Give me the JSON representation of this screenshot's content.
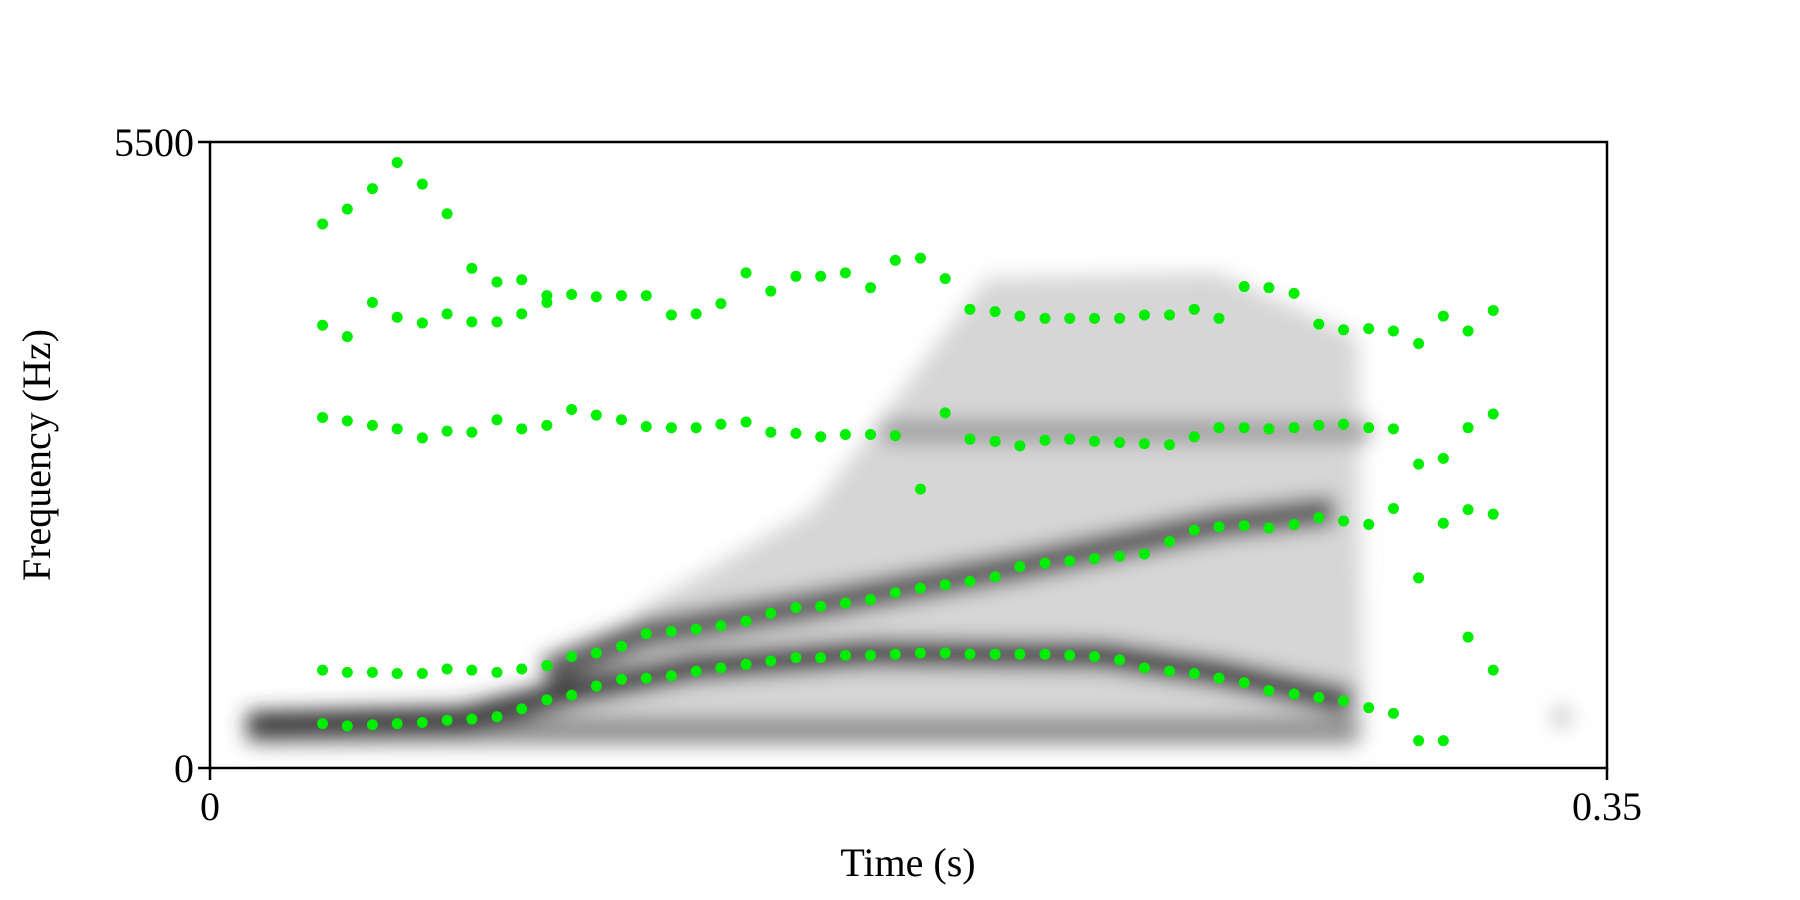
{
  "chart_data": {
    "type": "scatter",
    "xlabel": "Time (s)",
    "ylabel": "Frequency (Hz)",
    "xlim": [
      0,
      0.35
    ],
    "xticks": [
      0,
      0.35
    ],
    "ylim": [
      0,
      5500
    ],
    "yticks": [
      0,
      5500
    ],
    "x": [
      0.0282,
      0.0344,
      0.0407,
      0.0469,
      0.0532,
      0.0594,
      0.0656,
      0.0719,
      0.0781,
      0.0844,
      0.0906,
      0.0968,
      0.1031,
      0.1093,
      0.1156,
      0.1218,
      0.128,
      0.1343,
      0.1405,
      0.1468,
      0.153,
      0.1592,
      0.1655,
      0.1717,
      0.178,
      0.1842,
      0.1904,
      0.1967,
      0.2029,
      0.2092,
      0.2154,
      0.2216,
      0.2279,
      0.2341,
      0.2404,
      0.2466,
      0.2528,
      0.2591,
      0.2653,
      0.2716,
      0.2778,
      0.284,
      0.2903,
      0.2965,
      0.3028,
      0.309,
      0.3152,
      0.3215
    ],
    "series": [
      {
        "color": "#00ee00",
        "values": [
          390,
          370,
          380,
          390,
          400,
          420,
          430,
          450,
          520,
          600,
          640,
          720,
          780,
          790,
          810,
          850,
          880,
          910,
          940,
          970,
          970,
          990,
          990,
          1000,
          1010,
          1010,
          1000,
          1000,
          1000,
          1000,
          990,
          980,
          950,
          880,
          850,
          830,
          790,
          750,
          680,
          650,
          620,
          590,
          530,
          480,
          240,
          240,
          1150,
          860
        ]
      },
      {
        "color": "#00ee00",
        "values": [
          860,
          840,
          840,
          830,
          830,
          870,
          860,
          840,
          870,
          900,
          980,
          1010,
          1070,
          1180,
          1200,
          1220,
          1250,
          1290,
          1360,
          1410,
          1420,
          1450,
          1480,
          1540,
          1580,
          1610,
          1640,
          1680,
          1770,
          1800,
          1820,
          1840,
          1860,
          1880,
          1990,
          2090,
          2120,
          2130,
          2110,
          2140,
          2200,
          2170,
          2140,
          2280,
          1670,
          2150,
          2270,
          2230
        ]
      },
      {
        "color": "#00ee00",
        "values": [
          3080,
          3050,
          3010,
          2980,
          2900,
          2960,
          2950,
          3060,
          2980,
          3010,
          3150,
          3100,
          3060,
          3000,
          2990,
          2990,
          3020,
          3040,
          2950,
          2940,
          2910,
          2930,
          2930,
          2920,
          2450,
          3120,
          2890,
          2870,
          2830,
          2880,
          2890,
          2870,
          2860,
          2850,
          2840,
          2910,
          2990,
          2990,
          2980,
          2990,
          3010,
          3020,
          2990,
          2980,
          2670,
          2720,
          2990,
          3110
        ]
      },
      {
        "color": "#00ee00",
        "values": [
          3890,
          3790,
          4090,
          3960,
          3910,
          3990,
          3920,
          3920,
          3990,
          4090,
          4160,
          4140,
          4150,
          4150,
          3980,
          3990,
          4080,
          4350,
          4190,
          4320,
          4320,
          4350,
          4220,
          4460,
          4480,
          4300,
          4030,
          4010,
          3970,
          3950,
          3950,
          3950,
          3950,
          3980,
          3980,
          4030,
          3950,
          4230,
          4220,
          4170,
          3900,
          3850,
          3860,
          3840,
          3730,
          3970,
          3840,
          4020
        ]
      },
      {
        "color": "#00ee00",
        "values": [
          4780,
          4910,
          5090,
          5320,
          5130,
          4870,
          4390,
          4270,
          4290,
          4150,
          null,
          null,
          null,
          null,
          null,
          null,
          null,
          null,
          null,
          null,
          null,
          null,
          null,
          null,
          null,
          null,
          null,
          null,
          null,
          null,
          null,
          null,
          null,
          null,
          null,
          null,
          null,
          null,
          null,
          null,
          null,
          null,
          null,
          null,
          null,
          null,
          null,
          null
        ]
      }
    ]
  }
}
